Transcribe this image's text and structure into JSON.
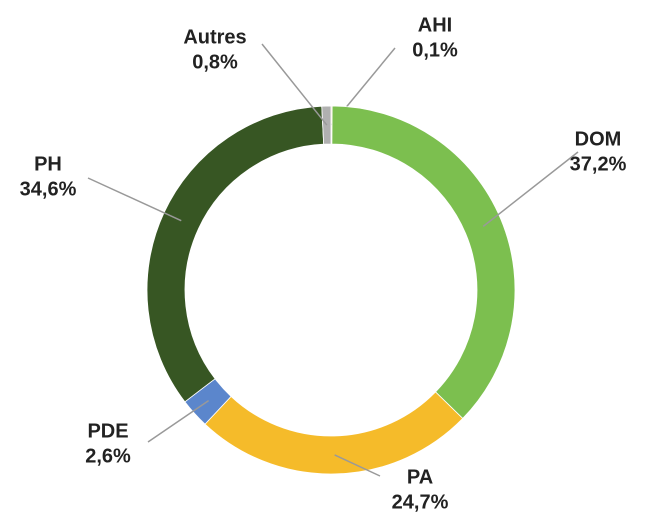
{
  "chart_data": {
    "type": "donut",
    "categories": [
      "AHI",
      "DOM",
      "PA",
      "PDE",
      "PH",
      "Autres"
    ],
    "values": [
      0.1,
      37.2,
      24.7,
      2.6,
      34.6,
      0.8
    ],
    "value_labels": [
      "0,1%",
      "37,2%",
      "24,7%",
      "2,6%",
      "34,6%",
      "0,8%"
    ],
    "colors": [
      "#f4b183",
      "#7cbf4f",
      "#f5bb2a",
      "#5b86cc",
      "#375623",
      "#b0b0b0"
    ]
  }
}
